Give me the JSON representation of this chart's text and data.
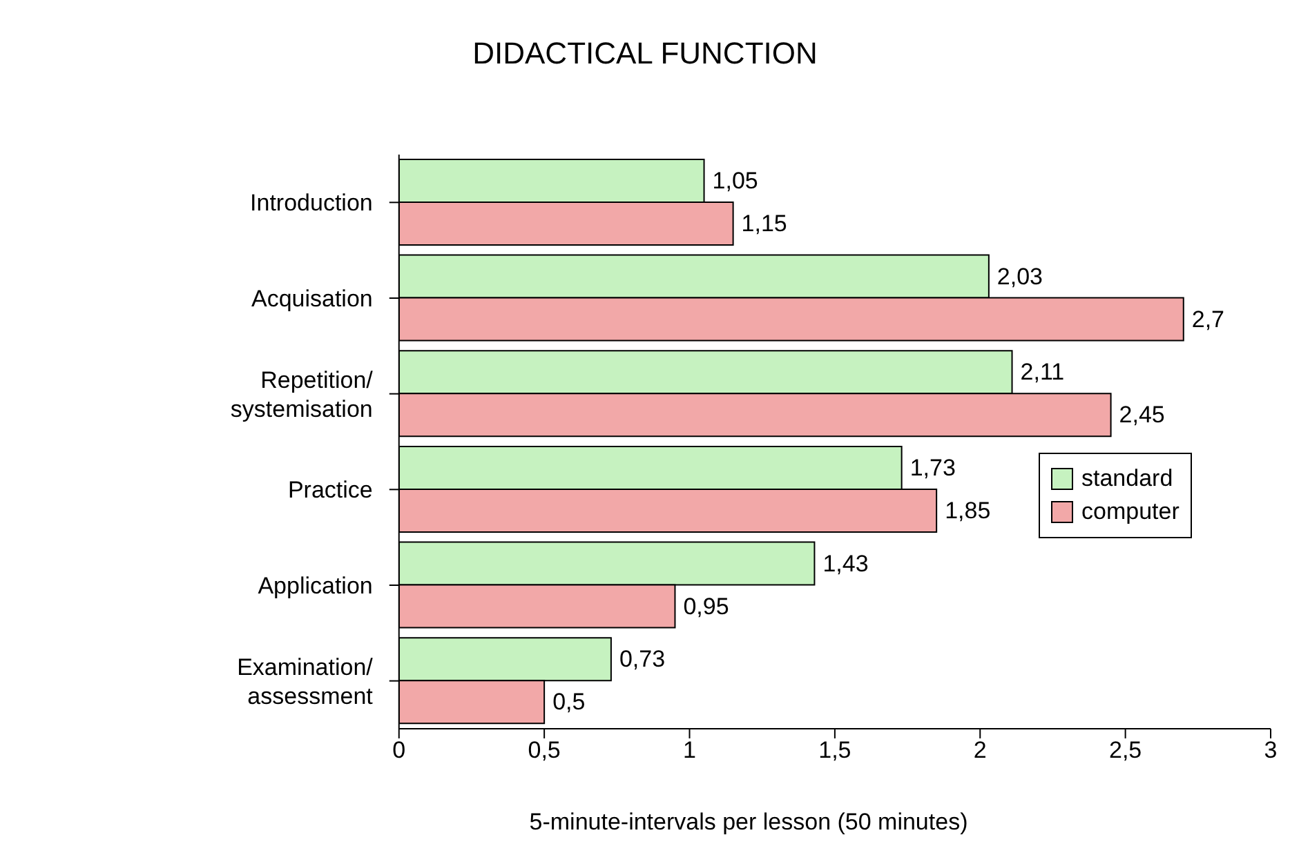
{
  "chart_data": {
    "type": "bar",
    "orientation": "horizontal",
    "title": "DIDACTICAL FUNCTION",
    "xlabel": "5-minute-intervals per lesson (50 minutes)",
    "categories": [
      "Introduction",
      "Acquisation",
      "Repetition/ systemisation",
      "Practice",
      "Application",
      "Examination/ assessment"
    ],
    "series": [
      {
        "name": "standard",
        "color": "#c6f2c0",
        "values": [
          1.05,
          2.03,
          2.11,
          1.73,
          1.43,
          0.73
        ],
        "value_labels": [
          "1,05",
          "2,03",
          "2,11",
          "1,73",
          "1,43",
          "0,73"
        ]
      },
      {
        "name": "computer",
        "color": "#f2a8a8",
        "values": [
          1.15,
          2.7,
          2.45,
          1.85,
          0.95,
          0.5
        ],
        "value_labels": [
          "1,15",
          "2,7",
          "2,45",
          "1,85",
          "0,95",
          "0,5"
        ]
      }
    ],
    "xlim": [
      0,
      3
    ],
    "xticks": [
      0,
      {
        "value": 0.5,
        "label": "0,5"
      },
      1,
      {
        "value": 1.5,
        "label": "1,5"
      },
      2,
      {
        "value": 2.5,
        "label": "2,5"
      },
      3
    ],
    "legend": "right"
  }
}
